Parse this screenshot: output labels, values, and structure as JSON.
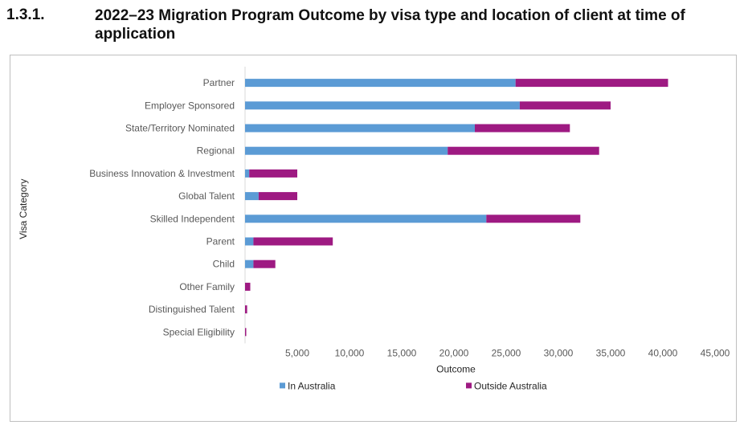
{
  "section": {
    "number": "1.3.1.",
    "title": "2022–23 Migration Program Outcome by visa type and location of client at time of application"
  },
  "chart_data": {
    "type": "bar",
    "orientation": "horizontal",
    "stacked": true,
    "categories": [
      "Partner",
      "Employer Sponsored",
      "State/Territory Nominated",
      "Regional",
      "Business Innovation & Investment",
      "Global Talent",
      "Skilled Independent",
      "Parent",
      "Child",
      "Other Family",
      "Distinguished Talent",
      "Special Eligibility"
    ],
    "series": [
      {
        "name": "In Australia",
        "color": "#5b9bd5",
        "values": [
          25900,
          26300,
          22000,
          19400,
          400,
          1300,
          23100,
          800,
          800,
          0,
          0,
          0
        ]
      },
      {
        "name": "Outside Australia",
        "color": "#9e1a82",
        "values": [
          14600,
          8700,
          9100,
          14500,
          4600,
          3700,
          9000,
          7600,
          2100,
          500,
          200,
          100
        ]
      }
    ],
    "xlabel": "Outcome",
    "ylabel": "Visa Category",
    "xlim": [
      0,
      45000
    ],
    "xticks": [
      "5,000",
      "10,000",
      "15,000",
      "20,000",
      "25,000",
      "30,000",
      "35,000",
      "40,000",
      "45,000"
    ],
    "xtick_values": [
      5000,
      10000,
      15000,
      20000,
      25000,
      30000,
      35000,
      40000,
      45000
    ],
    "grid": false,
    "legend_position": "bottom"
  }
}
